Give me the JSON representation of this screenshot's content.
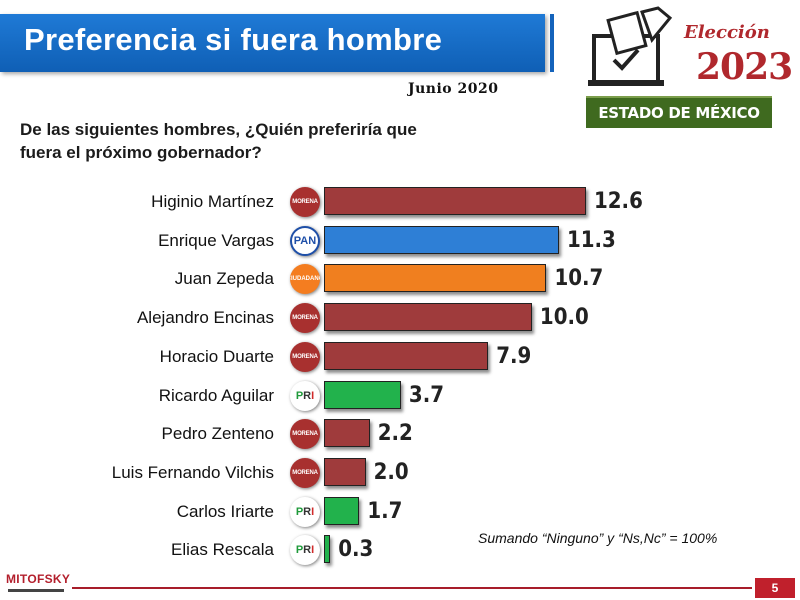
{
  "header": {
    "title": "Preferencia si fuera hombre",
    "date": "Junio 2020"
  },
  "logo": {
    "eleccion": "Elección",
    "year": "2023",
    "estado": "ESTADO DE MÉXICO"
  },
  "question": "De las siguientes hombres, ¿Quién preferiría que fuera el próximo gobernador?",
  "note": "Sumando “Ninguno” y “Ns,Nc”  = 100%",
  "footer": {
    "brand": "MITOFSKY",
    "page": "5"
  },
  "colors": {
    "morena": "#9f3b3c",
    "pan": "#2e7fd6",
    "mc": "#f07f1f",
    "pri": "#22b24c"
  },
  "party_labels": {
    "morena": "MORENA",
    "pan": "PAN",
    "mc": "CIUDADANO"
  },
  "chart_data": {
    "type": "bar",
    "orientation": "horizontal",
    "title": "",
    "categories": [
      "Higinio Martínez",
      "Enrique Vargas",
      "Juan Zepeda",
      "Alejandro Encinas",
      "Horacio Duarte",
      "Ricardo Aguilar",
      "Pedro Zenteno",
      "Luis Fernando Vilchis",
      "Carlos Iriarte",
      "Elias Rescala"
    ],
    "values": [
      12.6,
      11.3,
      10.7,
      10.0,
      7.9,
      3.7,
      2.2,
      2.0,
      1.7,
      0.3
    ],
    "value_labels": [
      "12.6",
      "11.3",
      "10.7",
      "10.0",
      "7.9",
      "3.7",
      "2.2",
      "2.0",
      "1.7",
      "0.3"
    ],
    "parties": [
      "morena",
      "pan",
      "mc",
      "morena",
      "morena",
      "pri",
      "morena",
      "morena",
      "pri",
      "pri"
    ],
    "xlim": [
      0,
      12.6
    ],
    "grid": false,
    "legend": "none"
  }
}
